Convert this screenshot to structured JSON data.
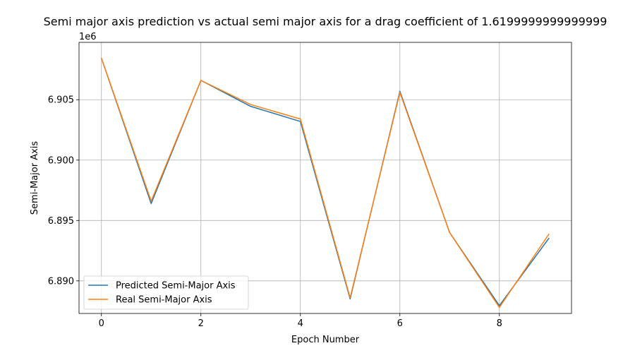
{
  "chart_data": {
    "type": "line",
    "title": "Semi major axis prediction vs actual semi major axis for a drag coefficient of 1.6199999999999999",
    "xlabel": "Epoch Number",
    "ylabel": "Semi-Major Axis",
    "y_offset_label": "1e6",
    "xlim": [
      -0.45,
      9.45
    ],
    "ylim": [
      6887300,
      6909750
    ],
    "x_scale_factor": 1,
    "y_scale_factor": 1000000,
    "xticks": [
      0,
      2,
      4,
      6,
      8
    ],
    "xtick_labels": [
      "0",
      "2",
      "4",
      "6",
      "8"
    ],
    "yticks": [
      6890000,
      6895000,
      6900000,
      6905000
    ],
    "ytick_labels": [
      "6.890",
      "6.895",
      "6.900",
      "6.905"
    ],
    "grid": true,
    "legend_position": "lower-left",
    "x": [
      0,
      1,
      2,
      3,
      4,
      5,
      6,
      7,
      8,
      9
    ],
    "series": [
      {
        "name": "Predicted Semi-Major Axis",
        "color": "#1f77b4",
        "values": [
          6908450,
          6896400,
          6906600,
          6904450,
          6903200,
          6888500,
          6905700,
          6894000,
          6887950,
          6893550
        ]
      },
      {
        "name": "Real Semi-Major Axis",
        "color": "#ff7f0e",
        "values": [
          6908450,
          6896600,
          6906600,
          6904600,
          6903400,
          6888600,
          6905600,
          6894000,
          6887800,
          6893900
        ]
      }
    ]
  }
}
